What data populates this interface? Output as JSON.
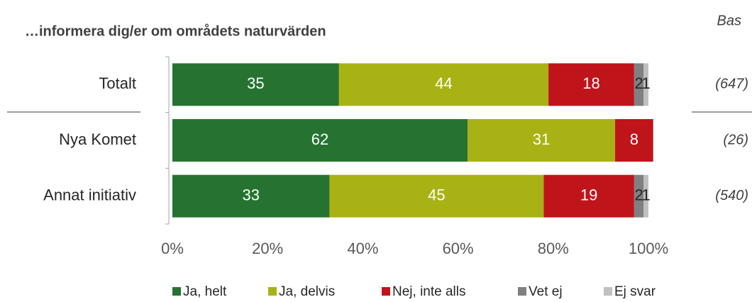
{
  "chart_data": {
    "type": "stacked_barh",
    "title": "…informera dig/er om områdets naturvärden",
    "categories": [
      "Totalt",
      "Nya Komet",
      "Annat initiativ"
    ],
    "series": [
      {
        "name": "Ja, helt",
        "color": "#267331",
        "values": [
          35,
          62,
          33
        ]
      },
      {
        "name": "Ja, delvis",
        "color": "#a8b214",
        "values": [
          44,
          31,
          45
        ]
      },
      {
        "name": "Nej, inte alls",
        "color": "#c0141b",
        "values": [
          18,
          8,
          19
        ]
      },
      {
        "name": "Vet ej",
        "color": "#808080",
        "values": [
          2,
          null,
          2
        ]
      },
      {
        "name": "Ej svar",
        "color": "#c0c0c0",
        "values": [
          1,
          null,
          1
        ]
      }
    ],
    "xlim": [
      0,
      100
    ],
    "xticks": [
      {
        "value": 0,
        "label": "0%"
      },
      {
        "value": 20,
        "label": "20%"
      },
      {
        "value": 40,
        "label": "40%"
      },
      {
        "value": 60,
        "label": "60%"
      },
      {
        "value": 80,
        "label": "80%"
      },
      {
        "value": 100,
        "label": "100%"
      }
    ],
    "base_title": "Bas",
    "base_labels": [
      "(647)",
      "(26)",
      "(540)"
    ],
    "legend": "bottom"
  }
}
